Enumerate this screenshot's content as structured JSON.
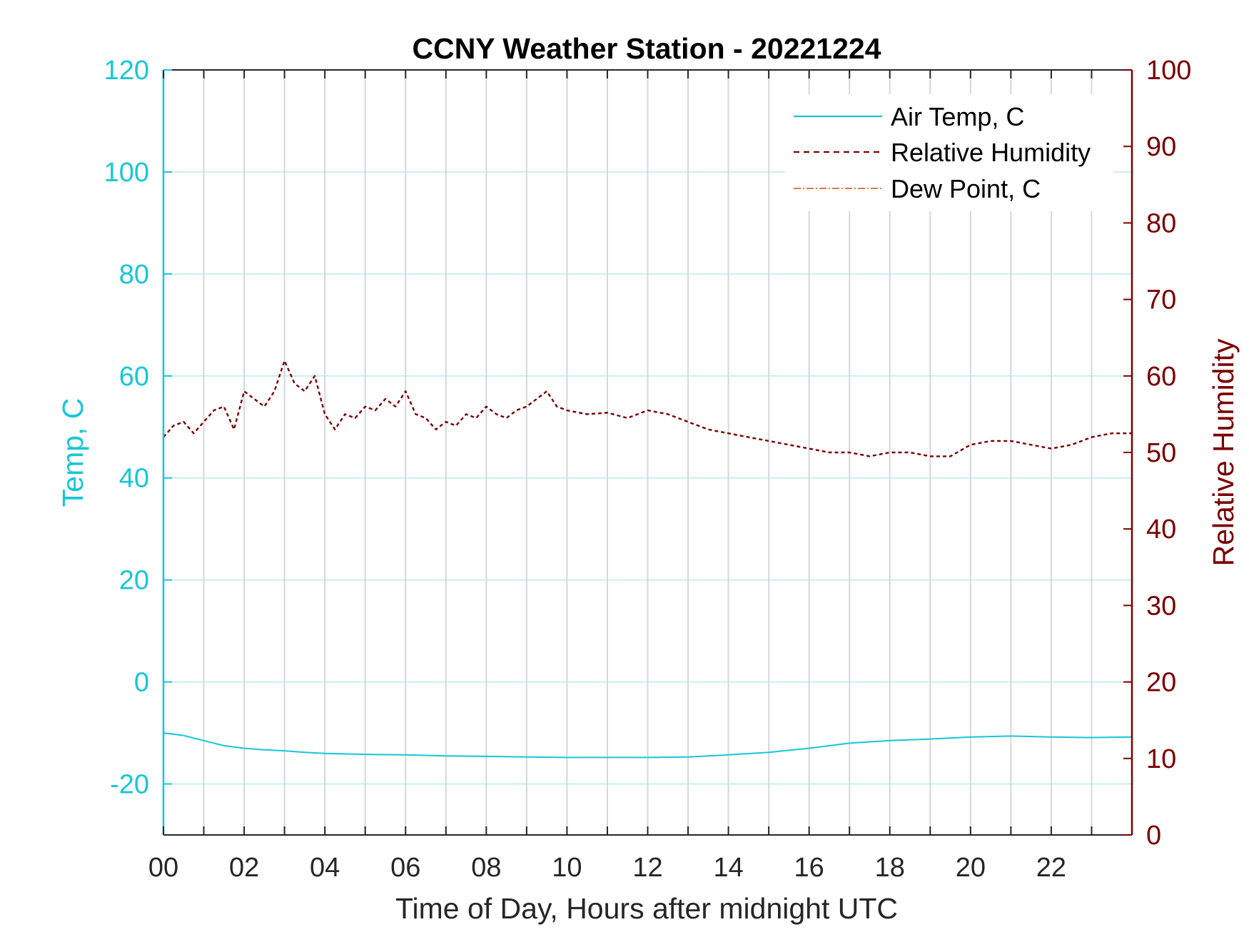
{
  "colors": {
    "temp": "#17c6d8",
    "rh": "#7a0000",
    "dew": "#e0691f",
    "grid_x": "#d4d8dc",
    "grid_y": "#c9eef3",
    "axis": "#262626"
  },
  "chart_data": {
    "type": "line",
    "title": "CCNY Weather Station - 20221224",
    "xlabel": "Time of Day, Hours after midnight UTC",
    "ylabel_left": "Temp, C",
    "ylabel_right": "Relative Humidity",
    "xlim": [
      0,
      24
    ],
    "ylim_left": [
      -30,
      120
    ],
    "ylim_right": [
      0,
      100
    ],
    "x_ticks": [
      0,
      2,
      4,
      6,
      8,
      10,
      12,
      14,
      16,
      18,
      20,
      22
    ],
    "x_tick_labels": [
      "00",
      "02",
      "04",
      "06",
      "08",
      "10",
      "12",
      "14",
      "16",
      "18",
      "20",
      "22"
    ],
    "y_left_ticks": [
      -20,
      0,
      20,
      40,
      60,
      80,
      100,
      120
    ],
    "y_left_tick_labels": [
      "-20",
      "0",
      "20",
      "40",
      "60",
      "80",
      "100",
      "120"
    ],
    "y_right_ticks": [
      0,
      10,
      20,
      30,
      40,
      50,
      60,
      70,
      80,
      90,
      100
    ],
    "y_right_tick_labels": [
      "0",
      "10",
      "20",
      "30",
      "40",
      "50",
      "60",
      "70",
      "80",
      "90",
      "100"
    ],
    "grid": true,
    "legend_position": "top-right",
    "series": [
      {
        "name": "Air Temp, C",
        "axis": "left",
        "style": "solid",
        "x": [
          0,
          0.5,
          1,
          1.5,
          2,
          2.5,
          3,
          3.5,
          4,
          5,
          6,
          7,
          8,
          9,
          10,
          11,
          12,
          13,
          14,
          15,
          16,
          17,
          18,
          19,
          20,
          21,
          22,
          23,
          24
        ],
        "y": [
          -10,
          -10.5,
          -11.5,
          -12.5,
          -13,
          -13.3,
          -13.5,
          -13.8,
          -14,
          -14.2,
          -14.3,
          -14.5,
          -14.6,
          -14.7,
          -14.8,
          -14.8,
          -14.8,
          -14.7,
          -14.3,
          -13.8,
          -13,
          -12,
          -11.5,
          -11.2,
          -10.8,
          -10.6,
          -10.8,
          -10.9,
          -10.8
        ]
      },
      {
        "name": "Relative Humidity",
        "axis": "right",
        "style": "dashed",
        "x": [
          0,
          0.25,
          0.5,
          0.75,
          1,
          1.25,
          1.5,
          1.75,
          2,
          2.25,
          2.5,
          2.75,
          3,
          3.25,
          3.5,
          3.75,
          4,
          4.25,
          4.5,
          4.75,
          5,
          5.25,
          5.5,
          5.75,
          6,
          6.25,
          6.5,
          6.75,
          7,
          7.25,
          7.5,
          7.75,
          8,
          8.25,
          8.5,
          8.75,
          9,
          9.25,
          9.5,
          9.75,
          10,
          10.5,
          11,
          11.5,
          12,
          12.5,
          13,
          13.5,
          14,
          14.5,
          15,
          15.5,
          16,
          16.5,
          17,
          17.5,
          18,
          18.5,
          19,
          19.5,
          20,
          20.5,
          21,
          21.5,
          22,
          22.5,
          23,
          23.5,
          24
        ],
        "y": [
          52,
          53.5,
          54,
          52.5,
          54,
          55.5,
          56,
          53,
          58,
          57,
          56,
          58,
          62,
          59,
          58,
          60,
          55,
          53,
          55,
          54.5,
          56,
          55.5,
          57,
          56,
          58,
          55,
          54.5,
          53,
          54,
          53.5,
          55,
          54.5,
          56,
          55,
          54.5,
          55.5,
          56,
          57,
          58,
          56,
          55.5,
          55,
          55.2,
          54.5,
          55.5,
          55,
          54,
          53,
          52.5,
          52,
          51.5,
          51,
          50.5,
          50,
          50,
          49.5,
          50,
          50,
          49.5,
          49.5,
          51,
          51.5,
          51.5,
          51,
          50.5,
          51,
          52,
          52.5,
          52.5
        ]
      },
      {
        "name": "Dew Point, C",
        "axis": "left",
        "style": "dash-dot",
        "x": [],
        "y": []
      }
    ]
  }
}
